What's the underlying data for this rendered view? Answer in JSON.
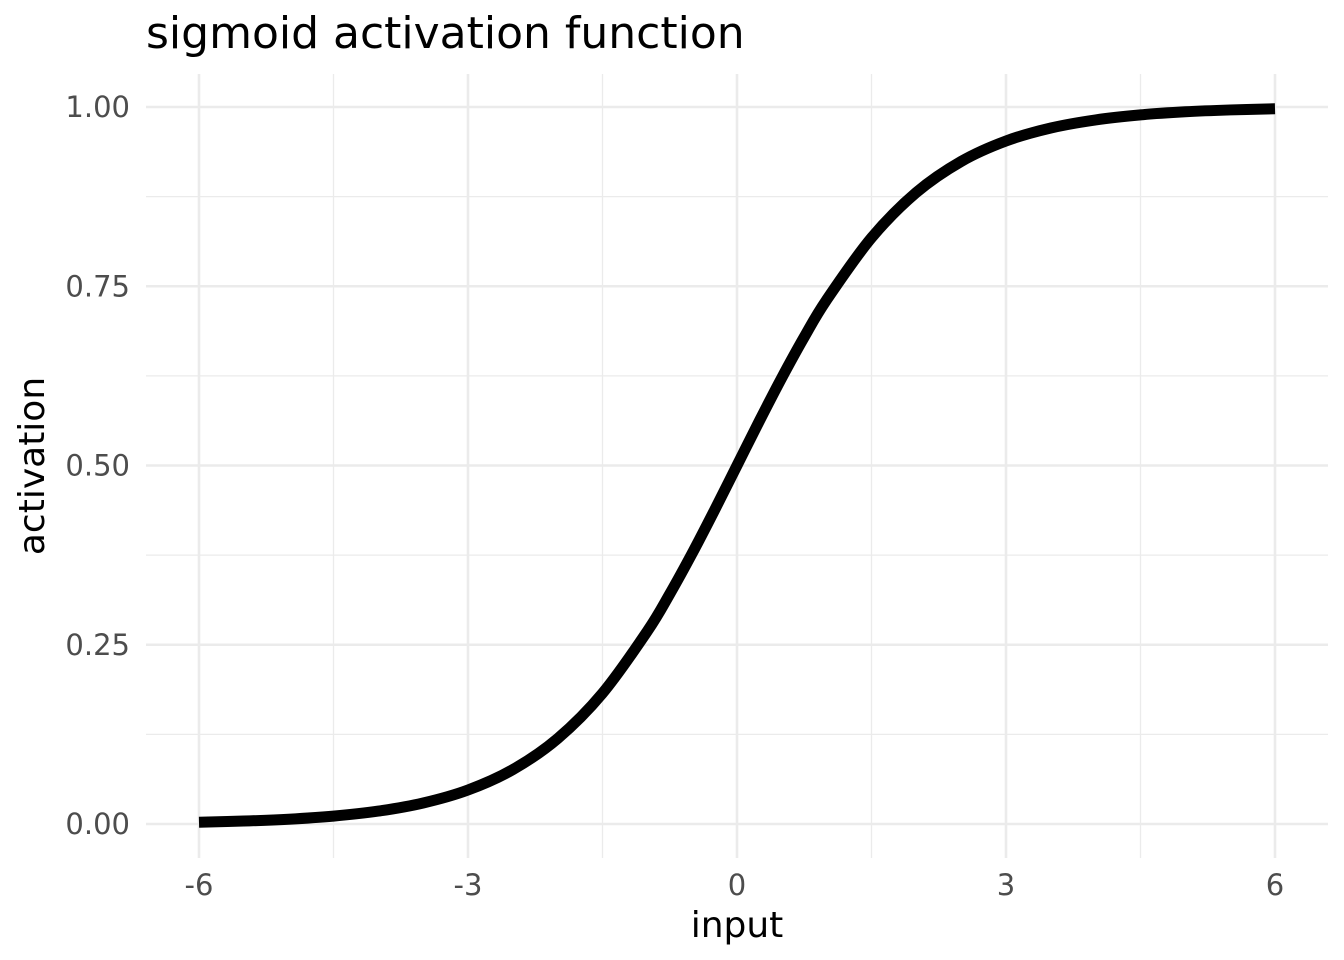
{
  "chart_data": {
    "type": "line",
    "title": "sigmoid activation function",
    "xlabel": "input",
    "ylabel": "activation",
    "xlim": [
      -6,
      6
    ],
    "ylim": [
      0,
      1
    ],
    "x_ticks": [
      -6,
      -3,
      0,
      3,
      6
    ],
    "x_tick_labels": [
      "-6",
      "-3",
      "0",
      "3",
      "6"
    ],
    "y_ticks": [
      0,
      0.25,
      0.5,
      0.75,
      1
    ],
    "y_tick_labels": [
      "0.00",
      "0.25",
      "0.50",
      "0.75",
      "1.00"
    ],
    "grid": true,
    "legend": "none",
    "line_color": "#000000",
    "series": [
      {
        "x": [
          -6,
          -5.5,
          -5,
          -4.5,
          -4,
          -3.5,
          -3,
          -2.5,
          -2,
          -1.5,
          -1,
          -0.75,
          -0.5,
          -0.25,
          0,
          0.25,
          0.5,
          0.75,
          1,
          1.5,
          2,
          2.5,
          3,
          3.5,
          4,
          4.5,
          5,
          5.5,
          6
        ],
        "values": [
          0.0025,
          0.0041,
          0.0067,
          0.011,
          0.018,
          0.0293,
          0.0474,
          0.0759,
          0.1192,
          0.1824,
          0.2689,
          0.3208,
          0.3775,
          0.4378,
          0.5,
          0.5622,
          0.6225,
          0.6792,
          0.7311,
          0.8176,
          0.8808,
          0.9241,
          0.9526,
          0.9707,
          0.982,
          0.989,
          0.9933,
          0.9959,
          0.9975
        ]
      }
    ]
  }
}
